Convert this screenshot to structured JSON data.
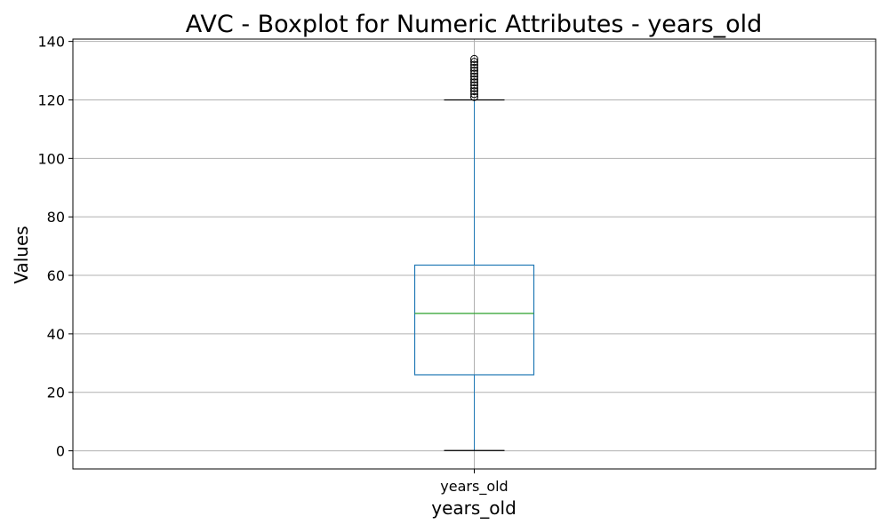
{
  "chart_data": {
    "type": "box",
    "title": "AVC - Boxplot for Numeric Attributes - years_old",
    "xlabel": "years_old",
    "ylabel": "Values",
    "categories": [
      "years_old"
    ],
    "ylim": [
      -6.2,
      140.8
    ],
    "yticks": [
      0,
      20,
      40,
      60,
      80,
      100,
      120,
      140
    ],
    "grid": true,
    "boxes": [
      {
        "category": "years_old",
        "whisker_low": 0.1,
        "q1": 26,
        "median": 47,
        "q3": 63.5,
        "whisker_high": 120,
        "outliers": [
          121,
          122,
          123,
          124,
          125,
          126,
          127,
          128,
          129,
          130,
          131,
          132,
          133,
          134
        ]
      }
    ],
    "colors": {
      "box": "#1f77b4",
      "median": "#2ca02c",
      "caps": "#000000",
      "grid": "#b0b0b0",
      "axes": "#000000"
    }
  }
}
